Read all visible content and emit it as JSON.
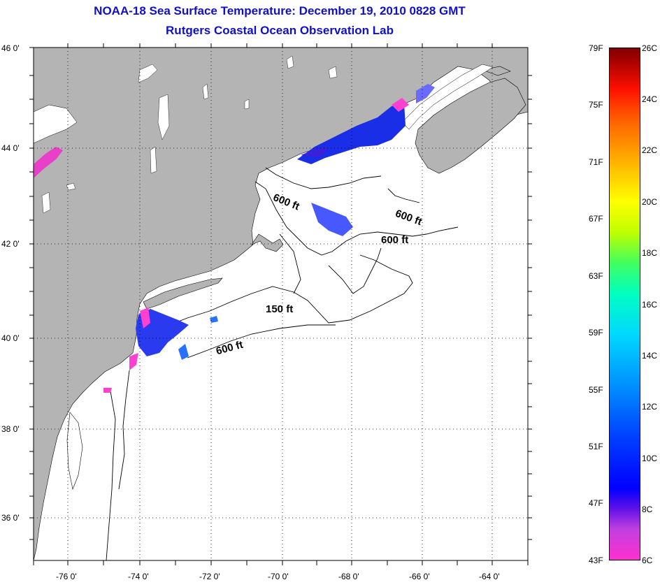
{
  "title": {
    "line1": "NOAA-18 Sea Surface Temperature:  December 19, 2010 0828 GMT",
    "line2": "Rutgers Coastal Ocean Observation Lab"
  },
  "latitude_labels": [
    "46 0'",
    "44 0'",
    "42 0'",
    "40 0'",
    "38 0'",
    "36 0'"
  ],
  "longitude_labels": [
    "-76 0'",
    "-74 0'",
    "-72 0'",
    "-70 0'",
    "-68 0'",
    "-66 0'",
    "-64 0'"
  ],
  "contour_labels": [
    "600 ft",
    "600 ft",
    "600 ft",
    "150 ft",
    "600 ft"
  ],
  "colorbar": {
    "fahrenheit": [
      "79F",
      "75F",
      "71F",
      "67F",
      "63F",
      "59F",
      "55F",
      "51F",
      "47F",
      "43F"
    ],
    "celsius": [
      "26C",
      "24C",
      "22C",
      "20C",
      "18C",
      "16C",
      "14C",
      "12C",
      "10C",
      "8C",
      "6C"
    ]
  },
  "colors": {
    "title": "#1010c8",
    "land": "#b4b4b4",
    "ocean": "#ffffff",
    "sst_cold": "#ff30d0",
    "sst_mid": "#0000ff"
  }
}
